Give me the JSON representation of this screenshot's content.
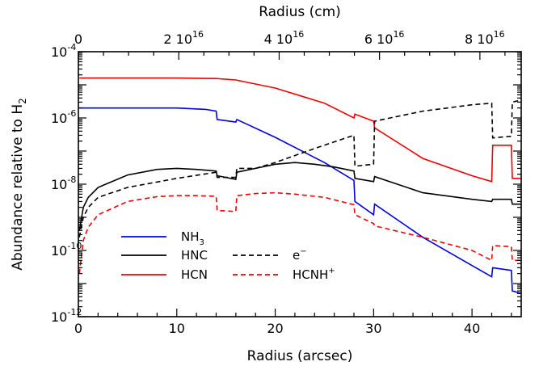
{
  "chart_data": {
    "type": "line",
    "xlabel": "Radius (arcsec)",
    "x2label": "Radius (cm)",
    "ylabel": "Abundance relative to H",
    "ylabel_subscript": "2",
    "xlim": [
      0,
      45
    ],
    "ylim": [
      1e-12,
      0.0001
    ],
    "yscale": "log",
    "x_ticks": [
      {
        "value": 0,
        "label": "0"
      },
      {
        "value": 10,
        "label": "10"
      },
      {
        "value": 20,
        "label": "20"
      },
      {
        "value": 30,
        "label": "30"
      },
      {
        "value": 40,
        "label": "40"
      }
    ],
    "y_ticks": [
      {
        "value": 1e-12,
        "base": "10",
        "exp": "-12"
      },
      {
        "value": 1e-10,
        "base": "10",
        "exp": "-10"
      },
      {
        "value": 1e-08,
        "base": "10",
        "exp": "-8"
      },
      {
        "value": 1e-06,
        "base": "10",
        "exp": "-6"
      },
      {
        "value": 0.0001,
        "base": "10",
        "exp": "-4"
      }
    ],
    "x2_ticks": [
      {
        "value": 0,
        "base": "0",
        "exp": ""
      },
      {
        "value": 10.2,
        "base": "2 10",
        "exp": "16"
      },
      {
        "value": 20.4,
        "base": "4 10",
        "exp": "16"
      },
      {
        "value": 30.6,
        "base": "6 10",
        "exp": "16"
      },
      {
        "value": 40.8,
        "base": "8 10",
        "exp": "16"
      }
    ],
    "legend": [
      {
        "series": "NH3",
        "base": "NH",
        "sub": "3",
        "sup": ""
      },
      {
        "series": "HNC",
        "base": "HNC",
        "sub": "",
        "sup": ""
      },
      {
        "series": "HCN",
        "base": "HCN",
        "sub": "",
        "sup": ""
      },
      {
        "series": "e-",
        "base": "e",
        "sub": "",
        "sup": "−"
      },
      {
        "series": "HCNH+",
        "base": "HCNH",
        "sub": "",
        "sup": "+"
      }
    ],
    "series": [
      {
        "name": "NH3",
        "color": "#0000dd",
        "dash": "solid",
        "points": [
          [
            0.1,
            2e-06
          ],
          [
            5,
            2e-06
          ],
          [
            10,
            2e-06
          ],
          [
            13,
            1.8e-06
          ],
          [
            14,
            1.6e-06
          ],
          [
            14.1,
            9e-07
          ],
          [
            16,
            7.5e-07
          ],
          [
            16.1,
            9e-07
          ],
          [
            20,
            2.6e-07
          ],
          [
            25,
            4.5e-08
          ],
          [
            28,
            1.3e-08
          ],
          [
            28.1,
            3e-09
          ],
          [
            30,
            1.2e-09
          ],
          [
            30.1,
            2.5e-09
          ],
          [
            35,
            2.5e-10
          ],
          [
            40,
            3.5e-11
          ],
          [
            42,
            1.6e-11
          ],
          [
            42.1,
            3e-11
          ],
          [
            44,
            2.5e-11
          ],
          [
            44.1,
            6e-12
          ],
          [
            45,
            5e-12
          ]
        ]
      },
      {
        "name": "HNC",
        "color": "#000000",
        "dash": "solid",
        "points": [
          [
            0.1,
            4e-10
          ],
          [
            0.5,
            2e-09
          ],
          [
            1,
            4e-09
          ],
          [
            2,
            8e-09
          ],
          [
            5,
            1.9e-08
          ],
          [
            8,
            2.8e-08
          ],
          [
            10,
            3e-08
          ],
          [
            12,
            2.8e-08
          ],
          [
            14,
            2.5e-08
          ],
          [
            14.1,
            1.8e-08
          ],
          [
            16,
            1.4e-08
          ],
          [
            16.1,
            2.3e-08
          ],
          [
            18,
            3e-08
          ],
          [
            20,
            4e-08
          ],
          [
            22,
            4.5e-08
          ],
          [
            24,
            4e-08
          ],
          [
            26,
            3.3e-08
          ],
          [
            28,
            2.5e-08
          ],
          [
            28.1,
            1.5e-08
          ],
          [
            30,
            1.2e-08
          ],
          [
            30.1,
            1.7e-08
          ],
          [
            35,
            5.5e-09
          ],
          [
            40,
            3.5e-09
          ],
          [
            42,
            3e-09
          ],
          [
            42.1,
            3.5e-09
          ],
          [
            44,
            3.5e-09
          ],
          [
            44.1,
            2.5e-09
          ],
          [
            45,
            2.5e-09
          ]
        ]
      },
      {
        "name": "HCN",
        "color": "#ee0000",
        "dash": "solid",
        "points": [
          [
            0.1,
            1.6e-05
          ],
          [
            5,
            1.6e-05
          ],
          [
            10,
            1.6e-05
          ],
          [
            14,
            1.55e-05
          ],
          [
            16,
            1.4e-05
          ],
          [
            20,
            8e-06
          ],
          [
            25,
            2.8e-06
          ],
          [
            28,
            1e-06
          ],
          [
            28.1,
            1.3e-06
          ],
          [
            30,
            8e-07
          ],
          [
            30.1,
            5e-07
          ],
          [
            35,
            6e-08
          ],
          [
            40,
            1.8e-08
          ],
          [
            42,
            1.2e-08
          ],
          [
            42.1,
            1.5e-07
          ],
          [
            44,
            1.5e-07
          ],
          [
            44.1,
            1.5e-08
          ],
          [
            45,
            1.5e-08
          ]
        ]
      },
      {
        "name": "e-",
        "color": "#000000",
        "dash": "dashed",
        "points": [
          [
            0.1,
            2.5e-10
          ],
          [
            0.5,
            1e-09
          ],
          [
            1,
            2e-09
          ],
          [
            2,
            4e-09
          ],
          [
            5,
            8e-09
          ],
          [
            10,
            1.5e-08
          ],
          [
            14,
            2.3e-08
          ],
          [
            14.1,
            1.6e-08
          ],
          [
            16,
            1.6e-08
          ],
          [
            16.1,
            3e-08
          ],
          [
            18,
            3e-08
          ],
          [
            20,
            4.5e-08
          ],
          [
            24,
            1.2e-07
          ],
          [
            28,
            3e-07
          ],
          [
            28.1,
            3.5e-08
          ],
          [
            30,
            4e-08
          ],
          [
            30.1,
            8e-07
          ],
          [
            35,
            1.6e-06
          ],
          [
            40,
            2.5e-06
          ],
          [
            42,
            2.8e-06
          ],
          [
            42.1,
            2.5e-07
          ],
          [
            44,
            2.8e-07
          ],
          [
            44.1,
            3e-06
          ],
          [
            45,
            3.5e-06
          ]
        ]
      },
      {
        "name": "HCNH+",
        "color": "#ee0000",
        "dash": "dashed",
        "points": [
          [
            0.1,
            2e-11
          ],
          [
            0.5,
            2e-10
          ],
          [
            1,
            5e-10
          ],
          [
            2,
            1.2e-09
          ],
          [
            5,
            3e-09
          ],
          [
            8,
            4.2e-09
          ],
          [
            10,
            4.5e-09
          ],
          [
            12,
            4.5e-09
          ],
          [
            14,
            4.3e-09
          ],
          [
            14.1,
            1.6e-09
          ],
          [
            16,
            1.5e-09
          ],
          [
            16.1,
            4.5e-09
          ],
          [
            18,
            5.2e-09
          ],
          [
            20,
            5.5e-09
          ],
          [
            22,
            5e-09
          ],
          [
            25,
            4e-09
          ],
          [
            28,
            2.4e-09
          ],
          [
            28.1,
            1.2e-09
          ],
          [
            30,
            6.5e-10
          ],
          [
            30.1,
            5.5e-10
          ],
          [
            35,
            2.5e-10
          ],
          [
            40,
            1e-10
          ],
          [
            42,
            5e-11
          ],
          [
            42.1,
            1.4e-10
          ],
          [
            44,
            1.3e-10
          ],
          [
            44.1,
            5e-11
          ],
          [
            45,
            5e-11
          ]
        ]
      }
    ]
  }
}
